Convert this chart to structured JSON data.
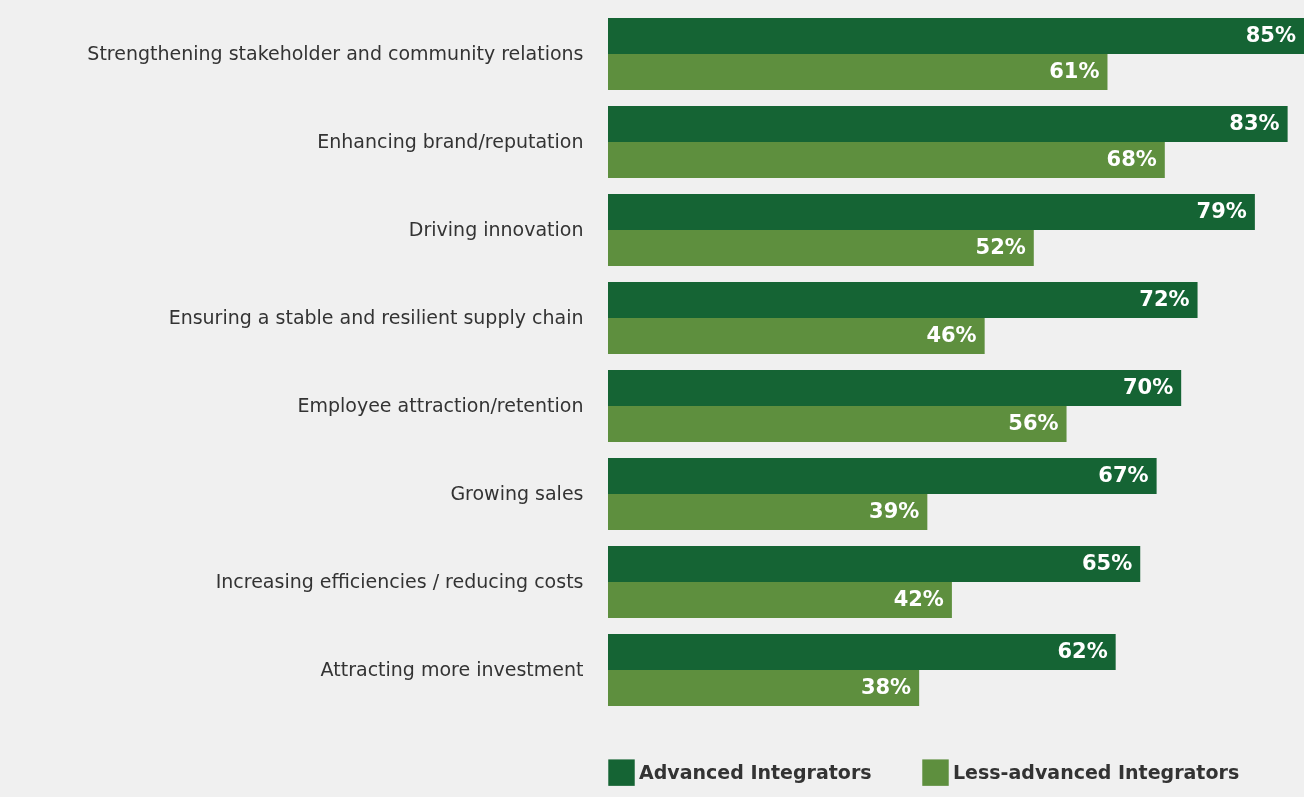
{
  "chart_data": {
    "type": "bar",
    "orientation": "horizontal",
    "legend": "bottom",
    "categories": [
      "Strengthening stakeholder and community relations",
      "Enhancing brand/reputation",
      "Driving innovation",
      "Ensuring a stable and resilient supply chain",
      "Employee attraction/retention",
      "Growing sales",
      "Increasing efficiencies / reducing costs",
      "Attracting more investment"
    ],
    "series": [
      {
        "name": "Advanced Integrators",
        "color": "#156434",
        "values": [
          85,
          83,
          79,
          72,
          70,
          67,
          65,
          62
        ],
        "value_labels": [
          "85%",
          "83%",
          "79%",
          "72%",
          "70%",
          "67%",
          "65%",
          "62%"
        ]
      },
      {
        "name": "Less-advanced Integrators",
        "color": "#5e8f3e",
        "values": [
          61,
          68,
          52,
          46,
          56,
          39,
          42,
          38
        ],
        "value_labels": [
          "61%",
          "68%",
          "52%",
          "46%",
          "56%",
          "39%",
          "42%",
          "38%"
        ]
      }
    ]
  }
}
